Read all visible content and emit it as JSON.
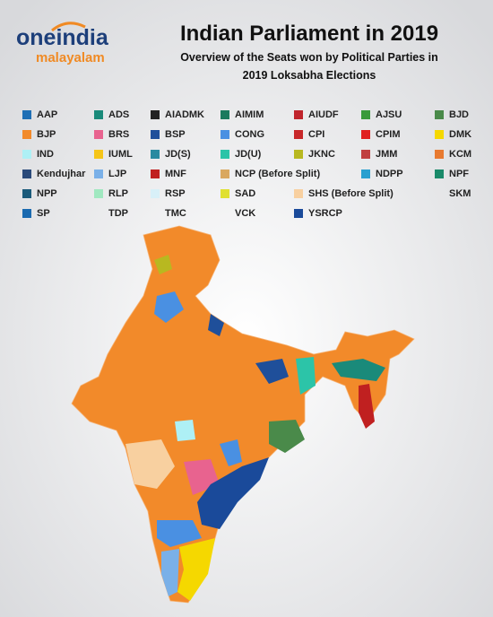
{
  "logo": {
    "name": "oneindia",
    "sub": "malayalam"
  },
  "header": {
    "title": "Indian Parliament in 2019",
    "subtitle": [
      "Overview of the Seats won by Political Parties in",
      "2019 Loksabha Elections"
    ]
  },
  "legend": {
    "rows": [
      [
        {
          "label": "AAP",
          "color": "#1f6fb5"
        },
        {
          "label": "ADS",
          "color": "#1a8a7a"
        },
        {
          "label": "AIADMK",
          "color": "#222222"
        },
        {
          "label": "AIMIM",
          "color": "#1a7a5e"
        },
        {
          "label": "AIUDF",
          "color": "#c0242c"
        },
        {
          "label": "AJSU",
          "color": "#3a9a3a"
        },
        {
          "label": "BJD",
          "color": "#4a8a4a"
        }
      ],
      [
        {
          "label": "BJP",
          "color": "#f28a2a"
        },
        {
          "label": "BRS",
          "color": "#e8638f"
        },
        {
          "label": "BSP",
          "color": "#1f4f9a"
        },
        {
          "label": "CONG",
          "color": "#4a90e2"
        },
        {
          "label": "CPI",
          "color": "#c8282a"
        },
        {
          "label": "CPIM",
          "color": "#e02020"
        },
        {
          "label": "DMK",
          "color": "#f5d800"
        }
      ],
      [
        {
          "label": "IND",
          "color": "#aef0f5"
        },
        {
          "label": "IUML",
          "color": "#f5c518"
        },
        {
          "label": "JD(S)",
          "color": "#2a8aa0"
        },
        {
          "label": "JD(U)",
          "color": "#2cc4a8"
        },
        {
          "label": "JKNC",
          "color": "#b8b820"
        },
        {
          "label": "JMM",
          "color": "#c04040"
        },
        {
          "label": "KCM",
          "color": "#e87a30"
        }
      ],
      [
        {
          "label": "Kendujhar",
          "color": "#2a4a7a"
        },
        {
          "label": "LJP",
          "color": "#7ab0e8"
        },
        {
          "label": "MNF",
          "color": "#c02020"
        },
        {
          "label": "NCP (Before Split)",
          "color": "#d9a860"
        },
        {
          "label": "NDPP",
          "color": "#2aa0d0"
        },
        {
          "label": "NPF",
          "color": "#1a8a6a"
        }
      ],
      [
        {
          "label": "NPP",
          "color": "#1a5a7a"
        },
        {
          "label": "RLP",
          "color": "#a0e8c0"
        },
        {
          "label": "RSP",
          "color": "#d8f0f8"
        },
        {
          "label": "SAD",
          "color": "#e0e030"
        },
        {
          "label": "SHS  (Before Split)",
          "color": "#f8d0a0"
        },
        {
          "label": "SKM"
        }
      ],
      [
        {
          "label": "SP",
          "color": "#1a6ab0"
        },
        {
          "label": "TDP"
        },
        {
          "label": "TMC"
        },
        {
          "label": "VCK"
        },
        {
          "label": "YSRCP",
          "color": "#1a4a9a"
        }
      ]
    ]
  }
}
